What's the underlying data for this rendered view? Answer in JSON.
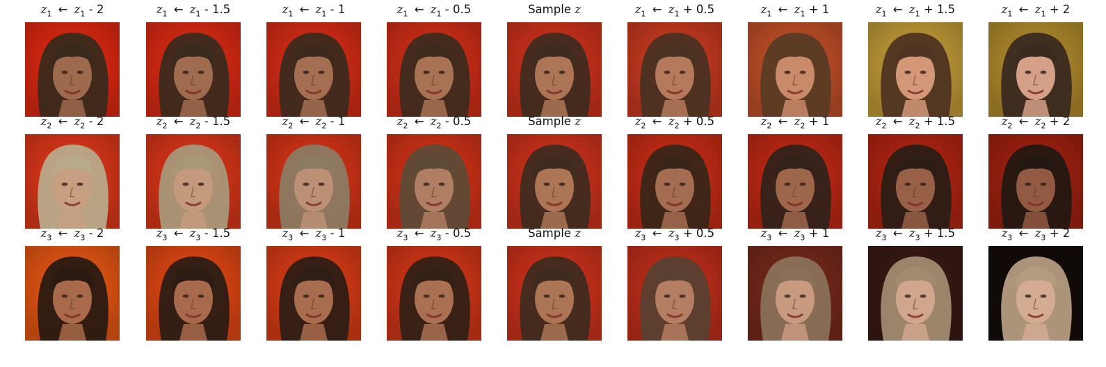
{
  "figure": {
    "rows": [
      {
        "cells": [
          {
            "var": "z",
            "index": "1",
            "rhs": "z",
            "rhs_index": "1",
            "op": "-",
            "amount": "2",
            "hair": "#3a2a1c",
            "bg": "#e82a12",
            "tone": "#9e6a4e"
          },
          {
            "var": "z",
            "index": "1",
            "rhs": "z",
            "rhs_index": "1",
            "op": "-",
            "amount": "1.5",
            "hair": "#3b2a1e",
            "bg": "#e42c14",
            "tone": "#a06c50"
          },
          {
            "var": "z",
            "index": "1",
            "rhs": "z",
            "rhs_index": "1",
            "op": "-",
            "amount": "1",
            "hair": "#3c2a1d",
            "bg": "#df2e16",
            "tone": "#a46e52"
          },
          {
            "var": "z",
            "index": "1",
            "rhs": "z",
            "rhs_index": "1",
            "op": "-",
            "amount": "0.5",
            "hair": "#3e2b1e",
            "bg": "#d93018",
            "tone": "#a87254"
          },
          {
            "label": "Sample",
            "var_only": "z",
            "hair": "#3f2b1f",
            "bg": "#d6341c",
            "tone": "#ab7556"
          },
          {
            "var": "z",
            "index": "1",
            "rhs": "z",
            "rhs_index": "1",
            "op": "+",
            "amount": "0.5",
            "hair": "#4a3222",
            "bg": "#d03c20",
            "tone": "#b57a5c"
          },
          {
            "var": "z",
            "index": "1",
            "rhs": "z",
            "rhs_index": "1",
            "op": "+",
            "amount": "1",
            "hair": "#5a3b24",
            "bg": "#c8522a",
            "tone": "#c98a6a"
          },
          {
            "var": "z",
            "index": "1",
            "rhs": "z",
            "rhs_index": "1",
            "op": "+",
            "amount": "1.5",
            "hair": "#4f3422",
            "bg": "#c9a23a",
            "tone": "#d29878"
          },
          {
            "var": "z",
            "index": "1",
            "rhs": "z",
            "rhs_index": "1",
            "op": "+",
            "amount": "2",
            "hair": "#3a2a20",
            "bg": "#b8912e",
            "tone": "#d4a088"
          }
        ]
      },
      {
        "cells": [
          {
            "var": "z",
            "index": "2",
            "rhs": "z",
            "rhs_index": "2",
            "op": "-",
            "amount": "2",
            "hair": "#b8aa8a",
            "bg": "#e63a1a",
            "tone": "#c7a082"
          },
          {
            "var": "z",
            "index": "2",
            "rhs": "z",
            "rhs_index": "2",
            "op": "-",
            "amount": "1.5",
            "hair": "#a89878",
            "bg": "#e2381a",
            "tone": "#c49a7c"
          },
          {
            "var": "z",
            "index": "2",
            "rhs": "z",
            "rhs_index": "2",
            "op": "-",
            "amount": "1",
            "hair": "#8c7a62",
            "bg": "#dd3618",
            "tone": "#bb9074"
          },
          {
            "var": "z",
            "index": "2",
            "rhs": "z",
            "rhs_index": "2",
            "op": "-",
            "amount": "0.5",
            "hair": "#5e4a36",
            "bg": "#d93418",
            "tone": "#b07e62"
          },
          {
            "label": "Sample",
            "var_only": "z",
            "hair": "#3f2b1f",
            "bg": "#d6341c",
            "tone": "#ab7556"
          },
          {
            "var": "z",
            "index": "2",
            "rhs": "z",
            "rhs_index": "2",
            "op": "+",
            "amount": "0.5",
            "hair": "#3a2618",
            "bg": "#cf2e16",
            "tone": "#a46c50"
          },
          {
            "var": "z",
            "index": "2",
            "rhs": "z",
            "rhs_index": "2",
            "op": "+",
            "amount": "1",
            "hair": "#33221a",
            "bg": "#c82a14",
            "tone": "#9e664a"
          },
          {
            "var": "z",
            "index": "2",
            "rhs": "z",
            "rhs_index": "2",
            "op": "+",
            "amount": "1.5",
            "hair": "#2c1e16",
            "bg": "#b82612",
            "tone": "#986046"
          },
          {
            "var": "z",
            "index": "2",
            "rhs": "z",
            "rhs_index": "2",
            "op": "+",
            "amount": "2",
            "hair": "#241812",
            "bg": "#a62210",
            "tone": "#925a42"
          }
        ]
      },
      {
        "cells": [
          {
            "var": "z",
            "index": "3",
            "rhs": "z",
            "rhs_index": "3",
            "op": "-",
            "amount": "2",
            "hair": "#2a1a12",
            "bg": "#f05a14",
            "tone": "#a86a4a"
          },
          {
            "var": "z",
            "index": "3",
            "rhs": "z",
            "rhs_index": "3",
            "op": "-",
            "amount": "1.5",
            "hair": "#2c1c14",
            "bg": "#ea4a14",
            "tone": "#a86a4c"
          },
          {
            "var": "z",
            "index": "3",
            "rhs": "z",
            "rhs_index": "3",
            "op": "-",
            "amount": "1",
            "hair": "#2e1e15",
            "bg": "#e23e16",
            "tone": "#a86c4e"
          },
          {
            "var": "z",
            "index": "3",
            "rhs": "z",
            "rhs_index": "3",
            "op": "-",
            "amount": "0.5",
            "hair": "#332116",
            "bg": "#db3818",
            "tone": "#aa7052"
          },
          {
            "label": "Sample",
            "var_only": "z",
            "hair": "#3f2b1f",
            "bg": "#d6341c",
            "tone": "#ab7556"
          },
          {
            "var": "z",
            "index": "3",
            "rhs": "z",
            "rhs_index": "3",
            "op": "+",
            "amount": "0.5",
            "hair": "#5a4030",
            "bg": "#c8301a",
            "tone": "#b47e62"
          },
          {
            "var": "z",
            "index": "3",
            "rhs": "z",
            "rhs_index": "3",
            "op": "+",
            "amount": "1",
            "hair": "#8a7058",
            "bg": "#7a2a1c",
            "tone": "#c89a80"
          },
          {
            "var": "z",
            "index": "3",
            "rhs": "z",
            "rhs_index": "3",
            "op": "+",
            "amount": "1.5",
            "hair": "#a08a70",
            "bg": "#3a1a14",
            "tone": "#d0a68c"
          },
          {
            "var": "z",
            "index": "3",
            "rhs": "z",
            "rhs_index": "3",
            "op": "+",
            "amount": "2",
            "hair": "#b49c80",
            "bg": "#140c0a",
            "tone": "#d4ac92"
          }
        ]
      }
    ]
  }
}
